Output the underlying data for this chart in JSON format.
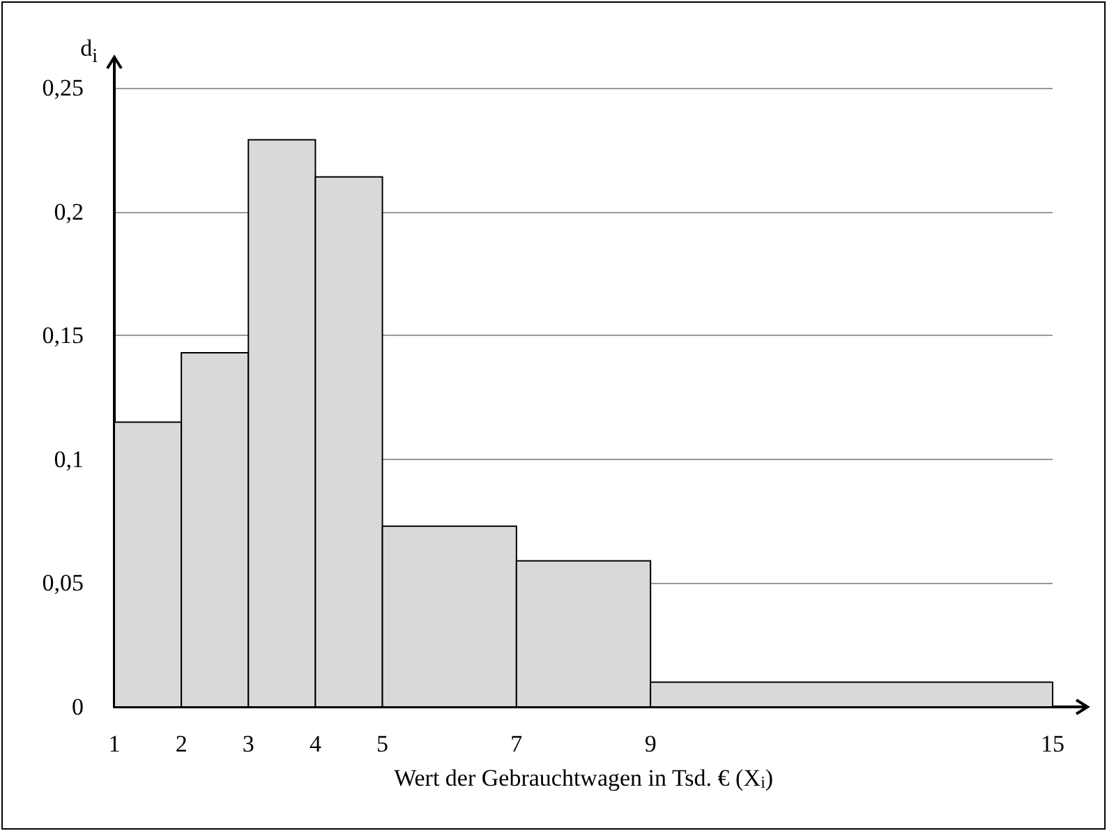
{
  "chart_data": {
    "type": "histogram",
    "xlabel": "Wert der Gebrauchtwagen in Tsd. € (X$_{i}$)",
    "ylabel": "d$_{i}$",
    "bins": [
      1,
      2,
      3,
      4,
      5,
      7,
      9,
      15
    ],
    "values": [
      0.115,
      0.143,
      0.229,
      0.214,
      0.073,
      0.059,
      0.01
    ],
    "color": "#d9d9d9",
    "xlim": [
      1,
      15
    ],
    "xticks": [
      1,
      2,
      3,
      4,
      5,
      7,
      9,
      15
    ],
    "ylim": [
      0,
      0.25
    ],
    "yticks": [
      0,
      {
        "value": 0.05,
        "label": "0,05"
      },
      {
        "value": 0.1,
        "label": "0,1"
      },
      {
        "value": 0.15,
        "label": "0,15"
      },
      {
        "value": 0.2,
        "label": "0,2"
      },
      {
        "value": 0.25,
        "label": "0,25"
      }
    ],
    "grid": "y",
    "legend": false
  }
}
